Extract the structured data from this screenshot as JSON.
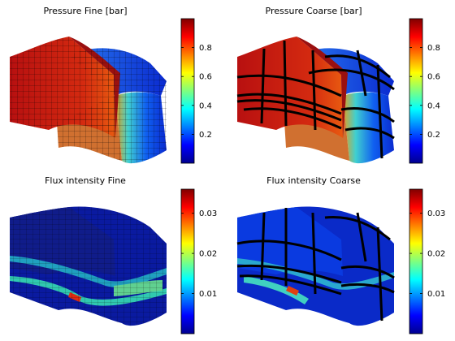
{
  "figure": {
    "panels": [
      {
        "title": "Pressure Fine [bar]",
        "field": "pressure",
        "grid": "fine",
        "colorbar_ticks": [
          "0.8",
          "0.6",
          "0.4",
          "0.2"
        ],
        "colorbar_tick_values": [
          0.8,
          0.6,
          0.4,
          0.2
        ],
        "colorbar_range": [
          0,
          1
        ]
      },
      {
        "title": "Pressure Coarse [bar]",
        "field": "pressure",
        "grid": "coarse",
        "colorbar_ticks": [
          "0.8",
          "0.6",
          "0.4",
          "0.2"
        ],
        "colorbar_tick_values": [
          0.8,
          0.6,
          0.4,
          0.2
        ],
        "colorbar_range": [
          0,
          1
        ]
      },
      {
        "title": "Flux intensity Fine",
        "field": "flux",
        "grid": "fine",
        "colorbar_ticks": [
          "0.03",
          "0.02",
          "0.01"
        ],
        "colorbar_tick_values": [
          0.03,
          0.02,
          0.01
        ],
        "colorbar_range": [
          0,
          0.036
        ]
      },
      {
        "title": "Flux intensity Coarse",
        "field": "flux",
        "grid": "coarse",
        "colorbar_ticks": [
          "0.03",
          "0.02",
          "0.01"
        ],
        "colorbar_tick_values": [
          0.03,
          0.02,
          0.01
        ],
        "colorbar_range": [
          0,
          0.036
        ]
      }
    ],
    "colormap": "jet"
  }
}
